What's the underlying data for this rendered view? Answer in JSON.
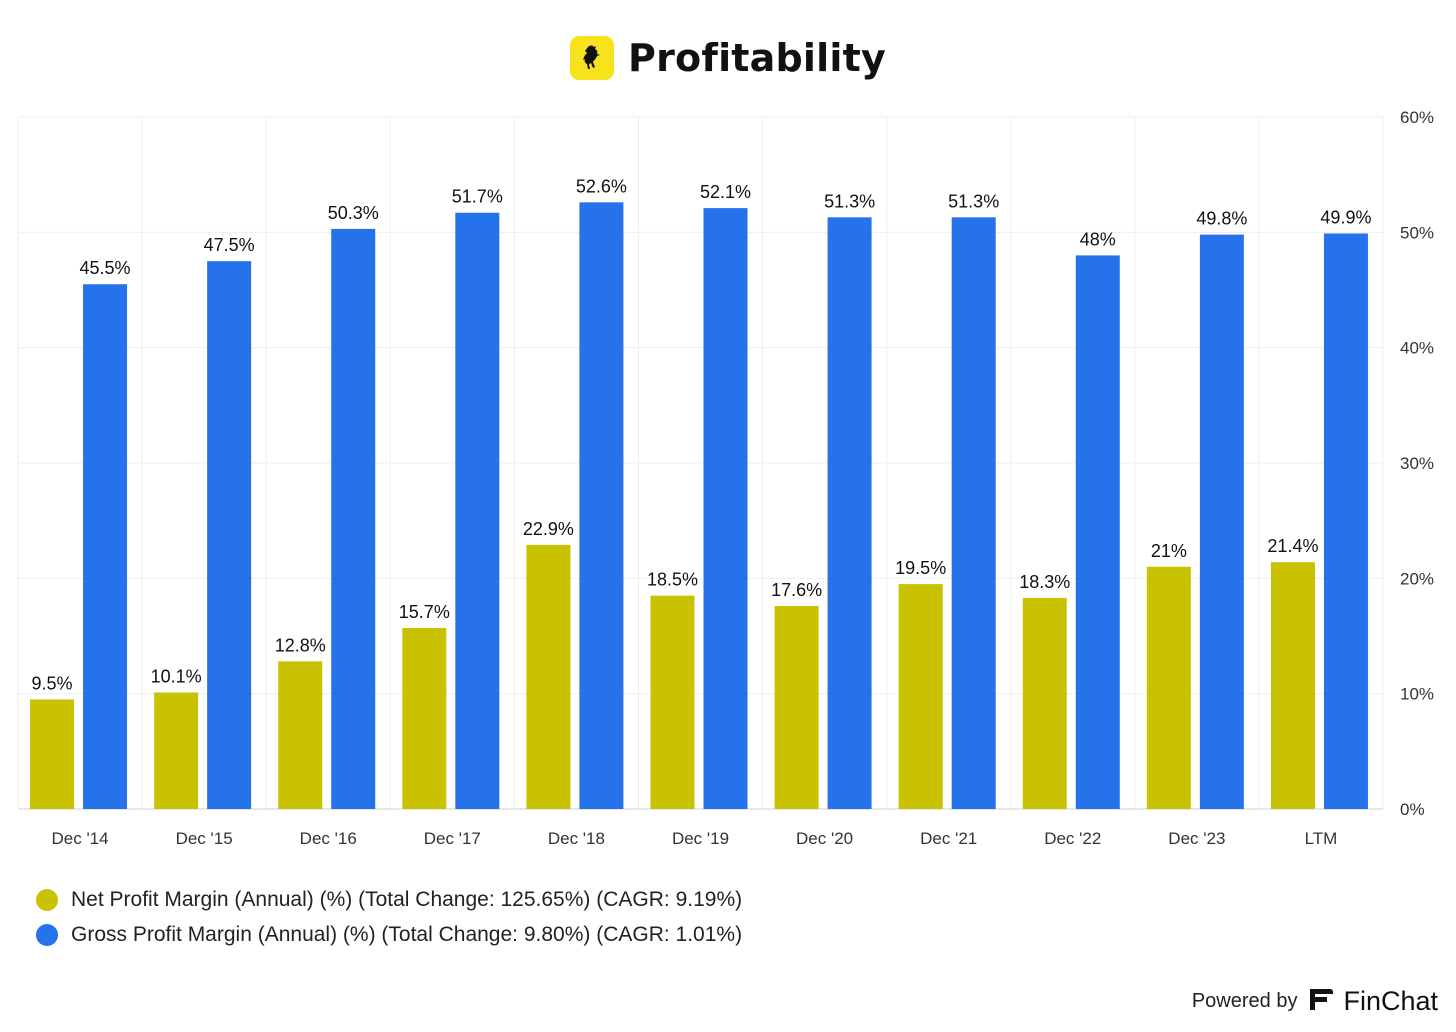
{
  "header": {
    "title": "Profitability",
    "logo_icon": "prancing-horse-icon"
  },
  "chart_data": {
    "type": "bar",
    "title": "Profitability",
    "categories": [
      "Dec '14",
      "Dec '15",
      "Dec '16",
      "Dec '17",
      "Dec '18",
      "Dec '19",
      "Dec '20",
      "Dec '21",
      "Dec '22",
      "Dec '23",
      "LTM"
    ],
    "series": [
      {
        "name": "Net Profit Margin (Annual) (%) (Total Change: 125.65%) (CAGR: 9.19%)",
        "color": "#c9c200",
        "values": [
          9.5,
          10.1,
          12.8,
          15.7,
          22.9,
          18.5,
          17.6,
          19.5,
          18.3,
          21,
          21.4
        ],
        "labels": [
          "9.5%",
          "10.1%",
          "12.8%",
          "15.7%",
          "22.9%",
          "18.5%",
          "17.6%",
          "19.5%",
          "18.3%",
          "21%",
          "21.4%"
        ]
      },
      {
        "name": "Gross Profit Margin (Annual) (%) (Total Change: 9.80%) (CAGR: 1.01%)",
        "color": "#2672ea",
        "values": [
          45.5,
          47.5,
          50.3,
          51.7,
          52.6,
          52.1,
          51.3,
          51.3,
          48,
          49.8,
          49.9
        ],
        "labels": [
          "45.5%",
          "47.5%",
          "50.3%",
          "51.7%",
          "52.6%",
          "52.1%",
          "51.3%",
          "51.3%",
          "48%",
          "49.8%",
          "49.9%"
        ]
      }
    ],
    "ylim": [
      0,
      60
    ],
    "yticks": [
      "0%",
      "10%",
      "20%",
      "30%",
      "40%",
      "50%",
      "60%"
    ],
    "y_axis_side": "right",
    "grid": true,
    "legend_position": "bottom-left"
  },
  "legend": {
    "items": [
      {
        "label": "Net Profit Margin (Annual) (%) (Total Change: 125.65%) (CAGR: 9.19%)",
        "color": "#c9c200"
      },
      {
        "label": "Gross Profit Margin (Annual) (%) (Total Change: 9.80%) (CAGR: 1.01%)",
        "color": "#2672ea"
      }
    ]
  },
  "footer": {
    "powered_by": "Powered by",
    "brand": "FinChat",
    "brand_icon": "finchat-logo-icon"
  }
}
